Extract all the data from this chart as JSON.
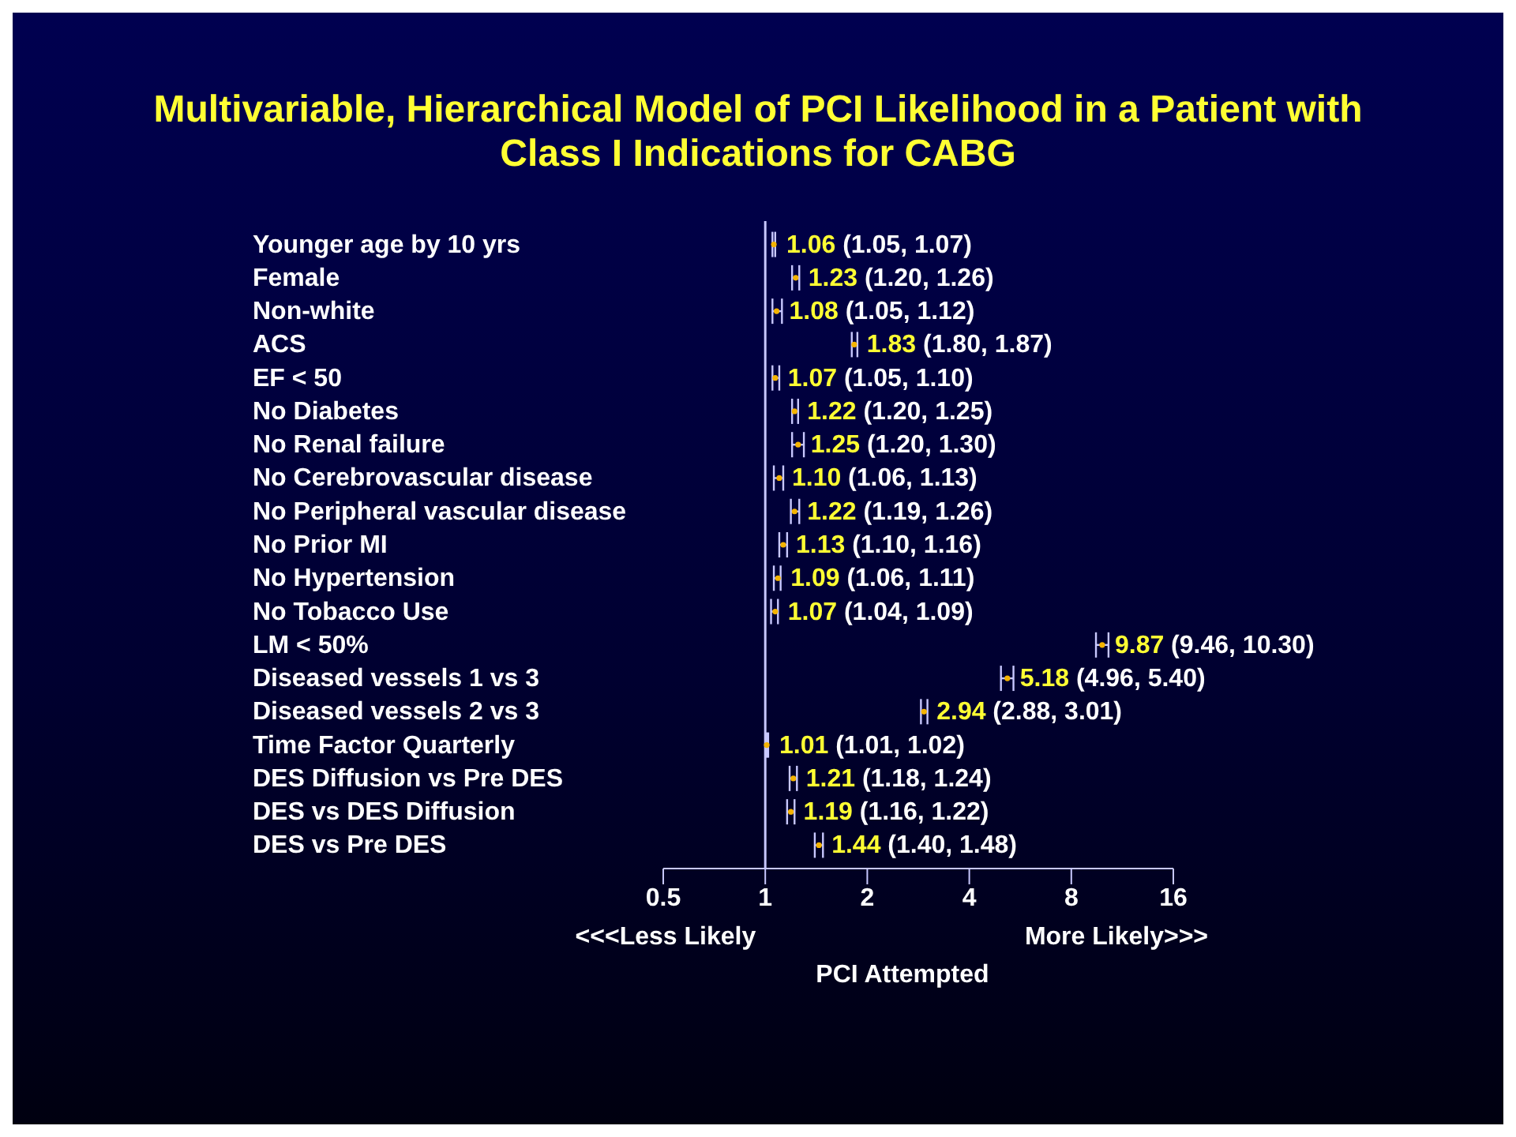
{
  "chart_data": {
    "type": "scatter",
    "orientation": "horizontal",
    "title": "Multivariable, Hierarchical Model of PCI Likelihood in a Patient with Class I Indications for CABG",
    "xlabel": "PCI Attempted",
    "annotations": [
      "<<<Less Likely",
      "More Likely>>>"
    ],
    "categories": [
      "Younger age by 10 yrs",
      "Female",
      "Non-white",
      "ACS",
      "EF < 50",
      "No Diabetes",
      "No Renal failure",
      "No Cerebrovascular disease",
      "No Peripheral vascular disease",
      "No Prior MI",
      "No Hypertension",
      "No Tobacco Use",
      "LM < 50%",
      "Diseased vessels 1 vs 3",
      "Diseased vessels 2 vs 3",
      "Time Factor Quarterly",
      "DES Diffusion vs Pre DES",
      "DES vs DES Diffusion",
      "DES vs Pre DES"
    ],
    "series": [
      {
        "color": "#f5b400",
        "values": [
          1.06,
          1.23,
          1.08,
          1.83,
          1.07,
          1.22,
          1.25,
          1.1,
          1.22,
          1.13,
          1.09,
          1.07,
          9.87,
          5.18,
          2.94,
          1.01,
          1.21,
          1.19,
          1.44
        ],
        "errors": [
          [
            1.05,
            1.07
          ],
          [
            1.2,
            1.26
          ],
          [
            1.05,
            1.12
          ],
          [
            1.8,
            1.87
          ],
          [
            1.05,
            1.1
          ],
          [
            1.2,
            1.25
          ],
          [
            1.2,
            1.3
          ],
          [
            1.06,
            1.13
          ],
          [
            1.19,
            1.26
          ],
          [
            1.1,
            1.16
          ],
          [
            1.06,
            1.11
          ],
          [
            1.04,
            1.09
          ],
          [
            9.46,
            10.3
          ],
          [
            4.96,
            5.4
          ],
          [
            2.88,
            3.01
          ],
          [
            1.01,
            1.02
          ],
          [
            1.18,
            1.24
          ],
          [
            1.16,
            1.22
          ],
          [
            1.4,
            1.48
          ]
        ],
        "value_labels": [
          "1.06 (1.05, 1.07)",
          "1.23 (1.20, 1.26)",
          "1.08 (1.05, 1.12)",
          "1.83 (1.80, 1.87)",
          "1.07 (1.05, 1.10)",
          "1.22 (1.20, 1.25)",
          "1.25 (1.20, 1.30)",
          "1.10 (1.06, 1.13)",
          "1.22 (1.19, 1.26)",
          "1.13 (1.10, 1.16)",
          "1.09 (1.06, 1.11)",
          "1.07 (1.04, 1.09)",
          "9.87 (9.46, 10.30)",
          "5.18 (4.96, 5.40)",
          "2.94 (2.88, 3.01)",
          "1.01 (1.01, 1.02)",
          "1.21 (1.18, 1.24)",
          "1.19 (1.16, 1.22)",
          "1.44 (1.40, 1.48)"
        ]
      }
    ],
    "log": "x",
    "xlim": [
      0.5,
      16
    ],
    "xticks": [
      0.5,
      1,
      2,
      4,
      8,
      16
    ],
    "ref_lines": [
      {
        "axis": "x",
        "value": 1,
        "color": "#c8c8ff"
      }
    ],
    "grid": false,
    "legend": false,
    "marker": "circle"
  }
}
